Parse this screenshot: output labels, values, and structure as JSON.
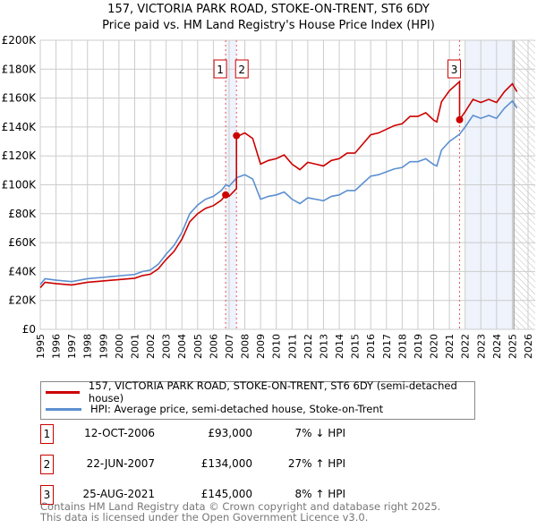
{
  "chart_data": {
    "type": "line",
    "title": "157, VICTORIA PARK ROAD, STOKE-ON-TRENT, ST6 6DY",
    "subtitle": "Price paid vs. HM Land Registry's House Price Index (HPI)",
    "xlim": [
      1995,
      2026
    ],
    "ylim": [
      0,
      200000
    ],
    "y_ticks": [
      {
        "v": 0,
        "label": "£0"
      },
      {
        "v": 20000,
        "label": "£20K"
      },
      {
        "v": 40000,
        "label": "£40K"
      },
      {
        "v": 60000,
        "label": "£60K"
      },
      {
        "v": 80000,
        "label": "£80K"
      },
      {
        "v": 100000,
        "label": "£100K"
      },
      {
        "v": 120000,
        "label": "£120K"
      },
      {
        "v": 140000,
        "label": "£140K"
      },
      {
        "v": 160000,
        "label": "£160K"
      },
      {
        "v": 180000,
        "label": "£180K"
      },
      {
        "v": 200000,
        "label": "£200K"
      }
    ],
    "x_ticks": [
      "1995",
      "1996",
      "1997",
      "1998",
      "1999",
      "2000",
      "2001",
      "2002",
      "2003",
      "2004",
      "2005",
      "2006",
      "2007",
      "2008",
      "2009",
      "2010",
      "2011",
      "2012",
      "2013",
      "2014",
      "2015",
      "2016",
      "2017",
      "2018",
      "2019",
      "2020",
      "2021",
      "2022",
      "2023",
      "2024",
      "2025",
      "2026"
    ],
    "grid": true,
    "colors": {
      "property": "#cc0000",
      "hpi": "#5b8fd0",
      "shade": "#eef3fc"
    },
    "hpi_series": {
      "name": "HPI: Average price, semi-detached house, Stoke-on-Trent",
      "x": [
        1995,
        1995.3,
        1996,
        1997,
        1998,
        1999,
        2000,
        2001,
        2001.5,
        2002,
        2002.5,
        2003,
        2003.5,
        2004,
        2004.5,
        2005,
        2005.5,
        2006,
        2006.5,
        2006.8,
        2007,
        2007.5,
        2008,
        2008.5,
        2009,
        2009.5,
        2010,
        2010.5,
        2011,
        2011.5,
        2012,
        2012.5,
        2013,
        2013.5,
        2014,
        2014.5,
        2015,
        2015.5,
        2016,
        2016.5,
        2017,
        2017.5,
        2018,
        2018.5,
        2019,
        2019.5,
        2020,
        2020.2,
        2020.5,
        2021,
        2021.65,
        2022,
        2022.5,
        2023,
        2023.5,
        2024,
        2024.5,
        2025,
        2025.3
      ],
      "values": [
        31000,
        35000,
        34000,
        33000,
        35000,
        36000,
        37000,
        38000,
        40000,
        41000,
        45000,
        52000,
        58000,
        67000,
        80000,
        86000,
        90000,
        92000,
        96000,
        100000,
        99000,
        105000,
        107000,
        104000,
        90000,
        92000,
        93000,
        95000,
        90000,
        87000,
        91000,
        90000,
        89000,
        92000,
        93000,
        96000,
        96000,
        101000,
        106000,
        107000,
        109000,
        111000,
        112000,
        116000,
        116000,
        118000,
        114000,
        113000,
        124000,
        130000,
        135000,
        140000,
        148000,
        146000,
        148000,
        146000,
        153000,
        158000,
        153000
      ]
    },
    "property_series": {
      "name": "157, VICTORIA PARK ROAD, STOKE-ON-TRENT, ST6 6DY (semi-detached house)"
    },
    "sales": [
      {
        "n": "1",
        "x": 2006.78,
        "date": "12-OCT-2006",
        "price": 93000,
        "price_label": "£93,000",
        "hpi": "7% ↓ HPI",
        "ratio": 0.93
      },
      {
        "n": "2",
        "x": 2007.47,
        "date": "22-JUN-2007",
        "price": 134000,
        "price_label": "£134,000",
        "hpi": "27% ↑ HPI",
        "ratio": 1.27
      },
      {
        "n": "3",
        "x": 2021.65,
        "date": "25-AUG-2021",
        "price": 145000,
        "price_label": "£145,000",
        "hpi": "8% ↑ HPI",
        "ratio": 1.075
      }
    ],
    "shaded_ranges": [
      [
        2006.78,
        2007.47
      ],
      [
        2022.0,
        2025.1
      ]
    ],
    "forecast_from": 2025.1
  },
  "legend": {
    "property": "157, VICTORIA PARK ROAD, STOKE-ON-TRENT, ST6 6DY (semi-detached house)",
    "hpi": "HPI: Average price, semi-detached house, Stoke-on-Trent"
  },
  "footer": {
    "line1": "Contains HM Land Registry data © Crown copyright and database right 2025.",
    "line2": "This data is licensed under the Open Government Licence v3.0."
  }
}
